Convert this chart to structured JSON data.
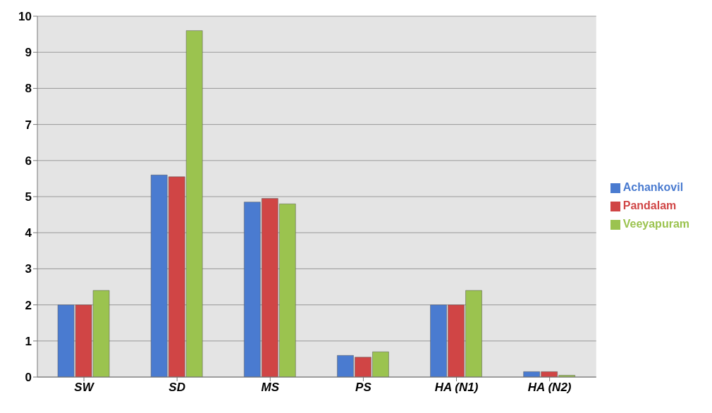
{
  "chart_data": {
    "type": "bar",
    "categories": [
      "SW",
      "SD",
      "MS",
      "PS",
      "HA (N1)",
      "HA (N2)"
    ],
    "series": [
      {
        "name": "Achankovil",
        "color": "#4a7bd0",
        "values": [
          2.0,
          5.6,
          4.85,
          0.6,
          2.0,
          0.15
        ]
      },
      {
        "name": "Pandalam",
        "color": "#d04545",
        "values": [
          2.0,
          5.55,
          4.95,
          0.55,
          2.0,
          0.15
        ]
      },
      {
        "name": "Veeyapuram",
        "color": "#9bc34f",
        "values": [
          2.4,
          9.6,
          4.8,
          0.7,
          2.4,
          0.05
        ]
      }
    ],
    "ylim": [
      0,
      10
    ],
    "yticks": [
      0,
      1,
      2,
      3,
      4,
      5,
      6,
      7,
      8,
      9,
      10
    ],
    "grid": "y",
    "legend": "right"
  }
}
